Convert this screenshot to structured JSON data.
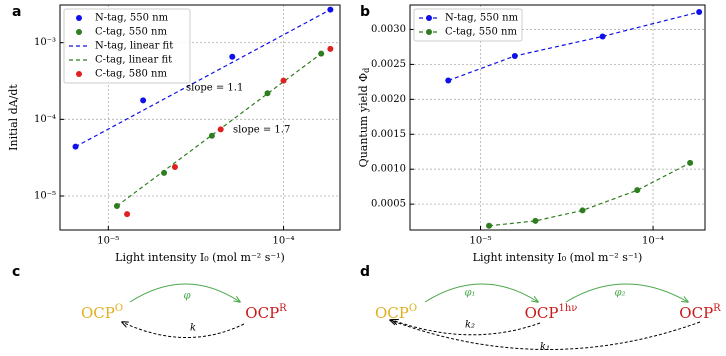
{
  "chart_data": [
    {
      "type": "scatter",
      "panel_label": "a",
      "xlabel": "Light intensity I₀ (mol m⁻² s⁻¹)",
      "ylabel": "Initial dA/dt",
      "xscale": "log",
      "yscale": "log",
      "xlim": [
        5.3e-06,
        0.00021
      ],
      "ylim": [
        3.6e-06,
        0.0031
      ],
      "xticks": [
        {
          "value": 1e-05,
          "label": "10⁻⁵"
        },
        {
          "value": 0.0001,
          "label": "10⁻⁴"
        }
      ],
      "yticks": [
        {
          "value": 1e-05,
          "label": "10⁻⁵"
        },
        {
          "value": 0.0001,
          "label": "10⁻⁴"
        },
        {
          "value": 0.001,
          "label": "10⁻³"
        }
      ],
      "grid": true,
      "legend": "upper left",
      "series": [
        {
          "name": "N-tag, 550 nm",
          "color": "#1010e8",
          "style": "marker",
          "x": [
            6.5e-06,
            1.58e-05,
            5.1e-05,
            0.000185
          ],
          "values": [
            4.4e-05,
            0.000177,
            0.000656,
            0.0027
          ]
        },
        {
          "name": "C-tag, 550 nm",
          "color": "#2e7d1e",
          "style": "marker",
          "x": [
            1.12e-05,
            2.08e-05,
            3.9e-05,
            8.1e-05,
            0.000164
          ],
          "values": [
            7.4e-06,
            2e-05,
            6.1e-05,
            0.000219,
            0.00072
          ]
        },
        {
          "name": "N-tag, linear fit",
          "color": "#1010e8",
          "style": "dashed",
          "x": [
            6.5e-06,
            0.000185
          ],
          "values": [
            4.4e-05,
            0.0027
          ]
        },
        {
          "name": "C-tag, linear fit",
          "color": "#2e7d1e",
          "style": "dashed",
          "x": [
            1.12e-05,
            0.000164
          ],
          "values": [
            7.4e-06,
            0.00072
          ]
        },
        {
          "name": "C-tag, 580 nm",
          "color": "#e02020",
          "style": "marker",
          "x": [
            1.28e-05,
            2.4e-05,
            4.38e-05,
            0.0001,
            0.000185
          ],
          "values": [
            5.8e-06,
            2.39e-05,
            7.4e-05,
            0.00032,
            0.00083
          ]
        }
      ],
      "annotations": [
        {
          "text": "slope = 1.1",
          "color": "#1010e8"
        },
        {
          "text": "slope = 1.7",
          "color": "#2e7d1e"
        }
      ]
    },
    {
      "type": "line",
      "panel_label": "b",
      "xlabel": "Light intensity I₀ (mol m⁻² s⁻¹)",
      "ylabel": "Quantum yield Φ",
      "ylabel_subscript": "d",
      "xscale": "log",
      "yscale": "linear",
      "xlim": [
        3.9e-06,
        0.0002
      ],
      "ylim": [
        0.00013,
        0.00335
      ],
      "xticks": [
        {
          "value": 1e-05,
          "label": "10⁻⁵"
        },
        {
          "value": 0.0001,
          "label": "10⁻⁴"
        }
      ],
      "yticks": [
        0.0005,
        {
          "value": 0.001,
          "label": "0.0010"
        },
        0.0015,
        {
          "value": 0.002,
          "label": "0.0020"
        },
        0.0025,
        {
          "value": 0.003,
          "label": "0.0030"
        }
      ],
      "grid": true,
      "legend": "upper left",
      "series": [
        {
          "name": "N-tag, 550 nm",
          "color": "#1010e8",
          "style": "dashed-marker",
          "x": [
            6.5e-06,
            1.58e-05,
            5.1e-05,
            0.000185
          ],
          "values": [
            0.00227,
            0.00262,
            0.0029,
            0.00325
          ]
        },
        {
          "name": "C-tag, 550 nm",
          "color": "#2e7d1e",
          "style": "dashed-marker",
          "x": [
            1.12e-05,
            2.08e-05,
            3.9e-05,
            8.1e-05,
            0.000164
          ],
          "values": [
            0.00019,
            0.00026,
            0.00041,
            0.0007,
            0.00109
          ]
        }
      ]
    }
  ],
  "diagrams": [
    {
      "panel_label": "c",
      "nodes": [
        {
          "label": "OCP",
          "superscript": "O",
          "color": "#e0b020"
        },
        {
          "label": "OCP",
          "superscript": "R",
          "color": "#c81818"
        }
      ],
      "edges": [
        {
          "label": "φ",
          "color": "#4aa84a",
          "style": "solid"
        },
        {
          "label": "k",
          "color": "#000000",
          "style": "dashed"
        }
      ]
    },
    {
      "panel_label": "d",
      "nodes": [
        {
          "label": "OCP",
          "superscript": "O",
          "color": "#e0b020"
        },
        {
          "label": "OCP",
          "superscript": "1hν",
          "color": "#c81818"
        },
        {
          "label": "OCP",
          "superscript": "R",
          "color": "#c81818"
        }
      ],
      "edges": [
        {
          "label": "φ₁",
          "color": "#4aa84a",
          "style": "solid"
        },
        {
          "label": "φ₂",
          "color": "#4aa84a",
          "style": "solid"
        },
        {
          "label": "k₂",
          "color": "#000000",
          "style": "dashed"
        },
        {
          "label": "k₁",
          "color": "#000000",
          "style": "dashed"
        }
      ]
    }
  ]
}
